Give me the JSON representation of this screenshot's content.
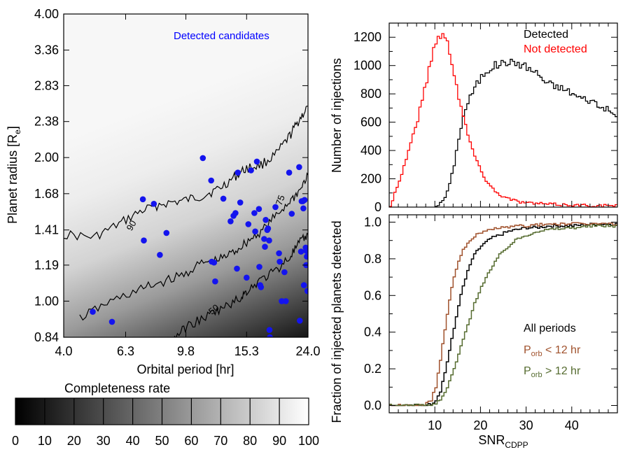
{
  "chart_data": [
    {
      "id": "completeness_map",
      "type": "heatmap",
      "title": "",
      "xlabel": "Orbital period [hr]",
      "ylabel_main": "Planet radius [R",
      "ylabel_sub": "e",
      "ylabel_end": "]",
      "x_ticks": [
        "4.0",
        "6.3",
        "9.8",
        "15.3",
        "24.0"
      ],
      "y_ticks": [
        "4.00",
        "3.36",
        "2.83",
        "2.38",
        "2.00",
        "1.68",
        "1.41",
        "1.19",
        "1.00",
        "0.84"
      ],
      "xlim_hr": [
        4.0,
        24.0
      ],
      "ylim_re": [
        0.84,
        4.0
      ],
      "legend_text": "Detected candidates",
      "legend_color": "#0000ff",
      "point_color": "#1414ee",
      "contour_labels": [
        "90",
        "75",
        "50"
      ],
      "contour_levels": [
        {
          "level": 90,
          "period_hr": [
            4.0,
            5.0,
            6.0,
            7.0,
            8.2,
            9.5,
            11.0,
            12.5,
            14.0,
            15.3,
            17.0,
            19.0,
            21.0,
            22.5,
            24.0
          ],
          "radius_re": [
            1.38,
            1.36,
            1.45,
            1.54,
            1.6,
            1.62,
            1.66,
            1.72,
            1.82,
            1.9,
            1.93,
            2.03,
            2.22,
            2.4,
            2.56
          ]
        },
        {
          "level": 75,
          "period_hr": [
            4.5,
            5.5,
            6.8,
            8.0,
            9.5,
            11.0,
            12.5,
            14.0,
            15.3,
            17.0,
            19.0,
            21.0,
            22.5,
            24.0
          ],
          "radius_re": [
            0.92,
            0.99,
            1.05,
            1.09,
            1.13,
            1.2,
            1.22,
            1.27,
            1.33,
            1.4,
            1.51,
            1.62,
            1.7,
            1.84
          ]
        },
        {
          "level": 50,
          "period_hr": [
            9.0,
            10.0,
            11.5,
            13.0,
            14.5,
            15.3,
            17.0,
            19.0,
            21.0,
            22.5,
            24.0
          ],
          "radius_re": [
            0.84,
            0.89,
            0.93,
            0.97,
            1.01,
            1.05,
            1.11,
            1.16,
            1.24,
            1.32,
            1.38
          ]
        }
      ],
      "candidates": [
        {
          "period_hr": 4.95,
          "radius_re": 0.95
        },
        {
          "period_hr": 5.7,
          "radius_re": 0.905
        },
        {
          "period_hr": 7.15,
          "radius_re": 1.635
        },
        {
          "period_hr": 7.2,
          "radius_re": 1.34
        },
        {
          "period_hr": 7.75,
          "radius_re": 1.6
        },
        {
          "period_hr": 8.1,
          "radius_re": 1.25
        },
        {
          "period_hr": 8.5,
          "radius_re": 1.39
        },
        {
          "period_hr": 11.1,
          "radius_re": 1.995
        },
        {
          "period_hr": 11.8,
          "radius_re": 1.79
        },
        {
          "period_hr": 11.85,
          "radius_re": 1.21
        },
        {
          "period_hr": 12.05,
          "radius_re": 1.205
        },
        {
          "period_hr": 12.15,
          "radius_re": 1.1
        },
        {
          "period_hr": 12.9,
          "radius_re": 1.64
        },
        {
          "period_hr": 13.6,
          "radius_re": 1.47
        },
        {
          "period_hr": 13.9,
          "radius_re": 1.51
        },
        {
          "period_hr": 14.1,
          "radius_re": 1.53
        },
        {
          "period_hr": 14.25,
          "radius_re": 1.17
        },
        {
          "period_hr": 14.35,
          "radius_re": 1.86
        },
        {
          "period_hr": 14.6,
          "radius_re": 1.61
        },
        {
          "period_hr": 15.3,
          "radius_re": 1.12
        },
        {
          "period_hr": 15.5,
          "radius_re": 1.45
        },
        {
          "period_hr": 15.8,
          "radius_re": 1.88
        },
        {
          "period_hr": 16.2,
          "radius_re": 1.53
        },
        {
          "period_hr": 16.3,
          "radius_re": 1.4
        },
        {
          "period_hr": 16.5,
          "radius_re": 1.962
        },
        {
          "period_hr": 16.75,
          "radius_re": 1.56
        },
        {
          "period_hr": 16.8,
          "radius_re": 1.18
        },
        {
          "period_hr": 16.9,
          "radius_re": 1.08
        },
        {
          "period_hr": 17.0,
          "radius_re": 1.07
        },
        {
          "period_hr": 17.4,
          "radius_re": 1.35
        },
        {
          "period_hr": 17.5,
          "radius_re": 1.3
        },
        {
          "period_hr": 17.6,
          "radius_re": 1.48
        },
        {
          "period_hr": 17.8,
          "radius_re": 1.41
        },
        {
          "period_hr": 17.9,
          "radius_re": 1.42
        },
        {
          "period_hr": 18.05,
          "radius_re": 1.34
        },
        {
          "period_hr": 18.1,
          "radius_re": 0.87
        },
        {
          "period_hr": 18.15,
          "radius_re": 0.84
        },
        {
          "period_hr": 18.9,
          "radius_re": 1.575
        },
        {
          "period_hr": 19.4,
          "radius_re": 1.26
        },
        {
          "period_hr": 19.5,
          "radius_re": 1.21
        },
        {
          "period_hr": 19.8,
          "radius_re": 1.0
        },
        {
          "period_hr": 20.2,
          "radius_re": 1.15
        },
        {
          "period_hr": 20.4,
          "radius_re": 1.0
        },
        {
          "period_hr": 20.9,
          "radius_re": 1.86
        },
        {
          "period_hr": 21.3,
          "radius_re": 1.525
        },
        {
          "period_hr": 22.5,
          "radius_re": 1.91
        },
        {
          "period_hr": 22.6,
          "radius_re": 0.91
        },
        {
          "period_hr": 22.8,
          "radius_re": 1.27
        },
        {
          "period_hr": 22.9,
          "radius_re": 1.62
        },
        {
          "period_hr": 23.1,
          "radius_re": 1.62
        },
        {
          "period_hr": 23.2,
          "radius_re": 1.565
        },
        {
          "period_hr": 23.4,
          "radius_re": 1.63
        },
        {
          "period_hr": 23.6,
          "radius_re": 1.295
        },
        {
          "period_hr": 23.7,
          "radius_re": 1.275
        },
        {
          "period_hr": 23.8,
          "radius_re": 1.24
        },
        {
          "period_hr": 23.7,
          "radius_re": 1.19
        },
        {
          "period_hr": 23.9,
          "radius_re": 1.05
        },
        {
          "period_hr": 23.3,
          "radius_re": 1.08
        }
      ]
    },
    {
      "id": "completeness_colorbar",
      "type": "colorbar",
      "title": "Completeness rate",
      "tick_labels": [
        "0",
        "10",
        "20",
        "30",
        "40",
        "50",
        "60",
        "70",
        "80",
        "90",
        "100"
      ],
      "range": [
        0,
        100
      ]
    },
    {
      "id": "snr_histogram",
      "type": "line",
      "xlabel": "",
      "ylabel": "Number of injections",
      "xlim": [
        0,
        50
      ],
      "ylim": [
        0,
        1300
      ],
      "y_ticks": [
        "0",
        "200",
        "400",
        "600",
        "800",
        "1000",
        "1200"
      ],
      "series": [
        {
          "name": "Detected",
          "color": "#000000",
          "x": [
            10,
            11,
            12,
            13,
            14,
            15,
            16,
            17,
            18,
            19,
            20,
            21,
            22,
            23,
            24,
            25,
            26,
            27,
            28,
            29,
            30,
            31,
            32,
            33,
            34,
            35,
            36,
            37,
            38,
            39,
            40,
            41,
            42,
            43,
            44,
            45,
            46,
            47,
            48,
            49,
            50
          ],
          "y": [
            10,
            25,
            70,
            160,
            300,
            490,
            640,
            740,
            810,
            870,
            920,
            960,
            985,
            1000,
            1010,
            1020,
            1030,
            1010,
            1020,
            1000,
            990,
            965,
            950,
            920,
            880,
            870,
            850,
            850,
            830,
            820,
            800,
            780,
            770,
            760,
            750,
            740,
            700,
            700,
            680,
            650,
            620
          ]
        },
        {
          "name": "Not detected",
          "color": "#ff0000",
          "x": [
            0,
            1,
            2,
            3,
            4,
            5,
            6,
            7,
            8,
            9,
            10,
            11,
            12,
            13,
            14,
            15,
            16,
            17,
            18,
            19,
            20,
            21,
            22,
            23,
            24,
            25,
            26,
            28,
            30,
            35,
            40,
            45,
            50
          ],
          "y": [
            0,
            110,
            180,
            290,
            400,
            510,
            620,
            760,
            900,
            1050,
            1180,
            1220,
            1200,
            1110,
            950,
            780,
            640,
            510,
            410,
            320,
            250,
            190,
            150,
            110,
            90,
            70,
            60,
            40,
            30,
            20,
            15,
            10,
            10
          ]
        }
      ]
    },
    {
      "id": "detection_fraction",
      "type": "line",
      "xlabel_main": "SNR",
      "xlabel_sub": "CDPP",
      "ylabel": "Fraction of injected planets detected",
      "xlim": [
        0,
        50
      ],
      "ylim": [
        -0.04,
        1.04
      ],
      "x_ticks": [
        "10",
        "20",
        "30",
        "40"
      ],
      "y_ticks": [
        "0.0",
        "0.2",
        "0.4",
        "0.6",
        "0.8",
        "1.0"
      ],
      "series": [
        {
          "name": "All periods",
          "label_main": "All periods",
          "label_sub": "",
          "label_rest": "",
          "color": "#000000",
          "x": [
            0,
            8,
            9,
            10,
            11,
            12,
            13,
            14,
            15,
            16,
            17,
            18,
            19,
            20,
            21,
            22,
            24,
            26,
            28,
            30,
            32,
            35,
            40,
            45,
            50
          ],
          "y": [
            0,
            0,
            0.01,
            0.03,
            0.08,
            0.18,
            0.3,
            0.42,
            0.55,
            0.65,
            0.73,
            0.8,
            0.84,
            0.87,
            0.89,
            0.91,
            0.93,
            0.95,
            0.96,
            0.97,
            0.97,
            0.98,
            0.98,
            0.99,
            0.99
          ]
        },
        {
          "name": "P_orb < 12 hr",
          "label_main": "P",
          "label_sub": "orb",
          "label_rest": " < 12 hr",
          "color": "#a0522d",
          "x": [
            0,
            7,
            8,
            9,
            10,
            11,
            12,
            13,
            14,
            15,
            16,
            17,
            18,
            19,
            20,
            22,
            24,
            26,
            28,
            30,
            35,
            40,
            45,
            50
          ],
          "y": [
            0,
            0,
            0.01,
            0.03,
            0.1,
            0.25,
            0.42,
            0.58,
            0.7,
            0.79,
            0.85,
            0.89,
            0.91,
            0.93,
            0.94,
            0.96,
            0.97,
            0.97,
            0.98,
            0.98,
            0.99,
            0.99,
            0.99,
            0.99
          ]
        },
        {
          "name": "P_orb > 12 hr",
          "label_main": "P",
          "label_sub": "orb",
          "label_rest": " > 12 hr",
          "color": "#556b2f",
          "x": [
            0,
            9,
            10,
            11,
            12,
            13,
            14,
            15,
            16,
            17,
            18,
            19,
            20,
            21,
            22,
            23,
            24,
            25,
            26,
            27,
            28,
            30,
            32,
            35,
            40,
            45,
            50
          ],
          "y": [
            0,
            0,
            0.01,
            0.03,
            0.07,
            0.13,
            0.2,
            0.28,
            0.36,
            0.44,
            0.52,
            0.59,
            0.65,
            0.7,
            0.74,
            0.78,
            0.82,
            0.85,
            0.87,
            0.89,
            0.91,
            0.93,
            0.95,
            0.96,
            0.97,
            0.98,
            0.98
          ]
        }
      ]
    }
  ]
}
